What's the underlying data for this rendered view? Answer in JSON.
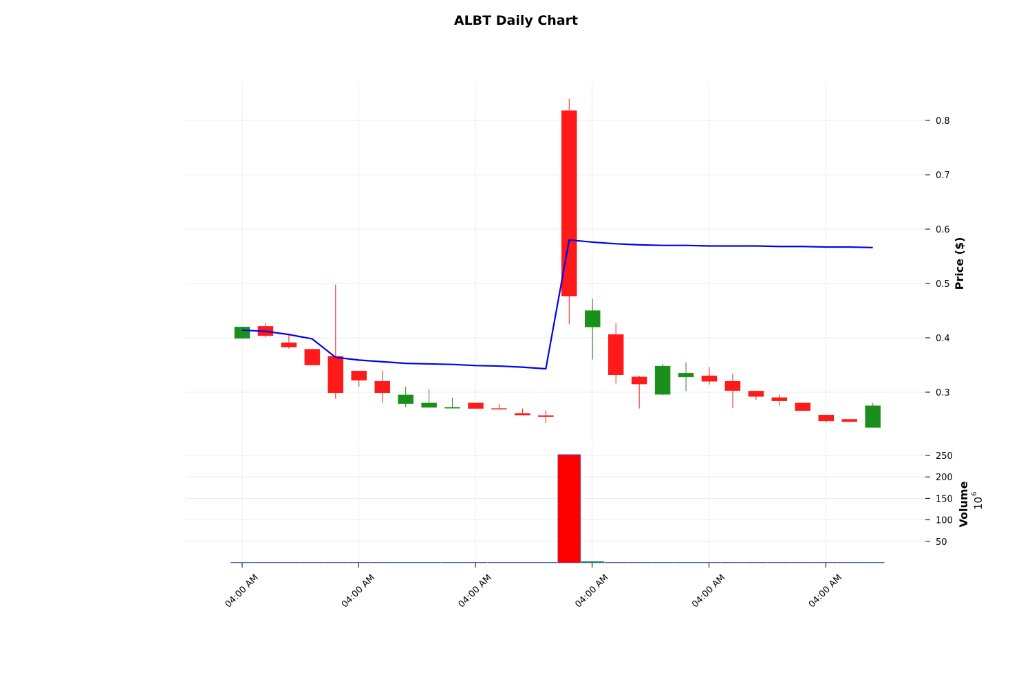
{
  "chart_data": {
    "type": "candlestick",
    "title": "ALBT Daily Chart",
    "price_panel": {
      "ylabel": "Price ($)",
      "ylim": [
        0.23,
        0.87
      ],
      "yticks": [
        0.3,
        0.4,
        0.5,
        0.6,
        0.7,
        0.8
      ],
      "ytick_labels": [
        "0.3",
        "0.4",
        "0.5",
        "0.6",
        "0.7",
        "0.8"
      ],
      "grid": true
    },
    "volume_panel": {
      "ylabel": "Volume",
      "scale_label": "10",
      "scale_exponent": "6",
      "ylim": [
        0,
        260
      ],
      "yticks": [
        50,
        100,
        150,
        200,
        250
      ],
      "ytick_labels": [
        "50",
        "100",
        "150",
        "200",
        "250"
      ],
      "grid": true
    },
    "xtick_labels": [
      "04:00 AM",
      "04:00 AM",
      "04:00 AM",
      "04:00 AM",
      "04:00 AM",
      "04:00 AM"
    ],
    "xtick_positions": [
      0,
      5,
      10,
      15,
      20,
      25
    ],
    "candles": [
      {
        "o": 0.399,
        "h": 0.42,
        "l": 0.399,
        "c": 0.42
      },
      {
        "o": 0.421,
        "h": 0.427,
        "l": 0.401,
        "c": 0.404
      },
      {
        "o": 0.391,
        "h": 0.408,
        "l": 0.38,
        "c": 0.383
      },
      {
        "o": 0.379,
        "h": 0.38,
        "l": 0.35,
        "c": 0.35
      },
      {
        "o": 0.366,
        "h": 0.498,
        "l": 0.288,
        "c": 0.299
      },
      {
        "o": 0.339,
        "h": 0.339,
        "l": 0.31,
        "c": 0.322
      },
      {
        "o": 0.32,
        "h": 0.34,
        "l": 0.28,
        "c": 0.299
      },
      {
        "o": 0.279,
        "h": 0.31,
        "l": 0.272,
        "c": 0.295
      },
      {
        "o": 0.272,
        "h": 0.306,
        "l": 0.272,
        "c": 0.28
      },
      {
        "o": 0.271,
        "h": 0.29,
        "l": 0.271,
        "c": 0.272
      },
      {
        "o": 0.28,
        "h": 0.28,
        "l": 0.27,
        "c": 0.27
      },
      {
        "o": 0.27,
        "h": 0.279,
        "l": 0.269,
        "c": 0.269
      },
      {
        "o": 0.261,
        "h": 0.27,
        "l": 0.258,
        "c": 0.258
      },
      {
        "o": 0.257,
        "h": 0.267,
        "l": 0.243,
        "c": 0.255
      },
      {
        "o": 0.818,
        "h": 0.84,
        "l": 0.425,
        "c": 0.477
      },
      {
        "o": 0.42,
        "h": 0.472,
        "l": 0.36,
        "c": 0.45
      },
      {
        "o": 0.406,
        "h": 0.427,
        "l": 0.316,
        "c": 0.332
      },
      {
        "o": 0.328,
        "h": 0.33,
        "l": 0.27,
        "c": 0.315
      },
      {
        "o": 0.296,
        "h": 0.352,
        "l": 0.294,
        "c": 0.348
      },
      {
        "o": 0.328,
        "h": 0.355,
        "l": 0.302,
        "c": 0.335
      },
      {
        "o": 0.33,
        "h": 0.346,
        "l": 0.314,
        "c": 0.32
      },
      {
        "o": 0.32,
        "h": 0.334,
        "l": 0.271,
        "c": 0.303
      },
      {
        "o": 0.302,
        "h": 0.302,
        "l": 0.286,
        "c": 0.292
      },
      {
        "o": 0.29,
        "h": 0.296,
        "l": 0.275,
        "c": 0.284
      },
      {
        "o": 0.28,
        "h": 0.28,
        "l": 0.266,
        "c": 0.266
      },
      {
        "o": 0.258,
        "h": 0.258,
        "l": 0.244,
        "c": 0.247
      },
      {
        "o": 0.25,
        "h": 0.25,
        "l": 0.244,
        "c": 0.246
      },
      {
        "o": 0.235,
        "h": 0.28,
        "l": 0.235,
        "c": 0.275
      }
    ],
    "moving_average": [
      0.414,
      0.412,
      0.406,
      0.398,
      0.364,
      0.359,
      0.356,
      0.353,
      0.352,
      0.351,
      0.349,
      0.348,
      0.346,
      0.343,
      0.58,
      0.576,
      0.573,
      0.571,
      0.57,
      0.57,
      0.569,
      0.569,
      0.569,
      0.568,
      0.568,
      0.567,
      0.567,
      0.566
    ],
    "volume": [
      0.6,
      0.5,
      0.5,
      0.5,
      0.6,
      0.5,
      0.5,
      0.4,
      0.4,
      0.3,
      0.3,
      0.3,
      0.3,
      0.5,
      252,
      3.0,
      1.0,
      0.5,
      0.5,
      0.4,
      0.4,
      0.4,
      0.3,
      0.3,
      0.3,
      0.3,
      0.3,
      0.3
    ],
    "volume_colors": [
      "#1b8f1b",
      "#ff0000",
      "#ff0000",
      "#ff0000",
      "#ff0000",
      "#ff0000",
      "#ff0000",
      "#1b8f1b",
      "#1b8f1b",
      "#1b8f1b",
      "#ff0000",
      "#ff0000",
      "#ff0000",
      "#ff0000",
      "#ff0000",
      "#1b8f1b",
      "#ff0000",
      "#ff0000",
      "#1b8f1b",
      "#1b8f1b",
      "#ff0000",
      "#ff0000",
      "#ff0000",
      "#ff0000",
      "#ff0000",
      "#ff0000",
      "#ff0000",
      "#1b8f1b"
    ],
    "colors": {
      "up": "#1b8f1b",
      "down": "#ff1a1a",
      "ma_line": "#0000ee",
      "grid": "#e6e6e6",
      "volume_edge": "#3b5bbf"
    }
  }
}
